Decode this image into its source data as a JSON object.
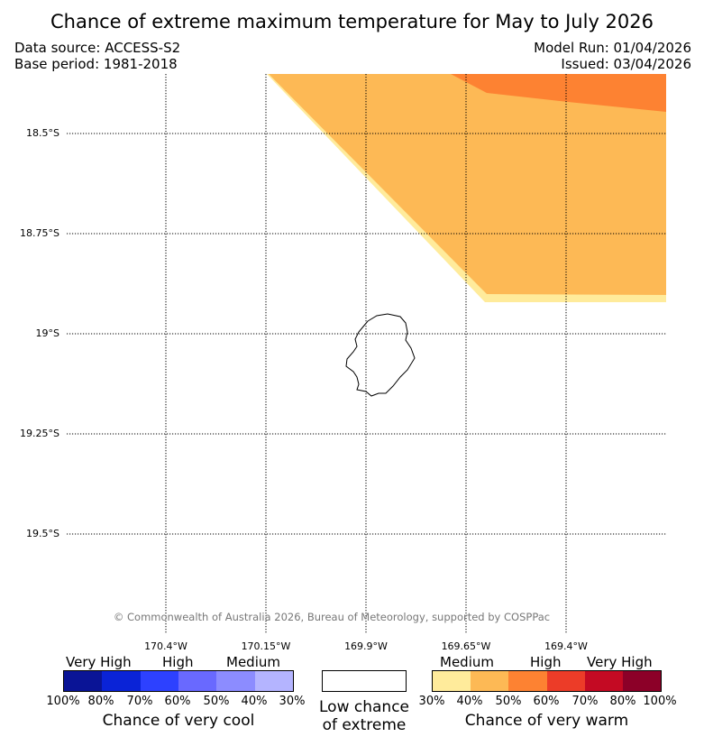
{
  "title": "Chance of extreme maximum temperature for May to July 2026",
  "data_source": "Data source: ACCESS-S2",
  "base_period": "Base period: 1981-2018",
  "model_run": "Model Run: 01/04/2026",
  "issued": "Issued: 03/04/2026",
  "lat_labels": [
    "18.5°S",
    "18.75°S",
    "19°S",
    "19.25°S",
    "19.5°S"
  ],
  "lon_labels": [
    "170.4°W",
    "170.15°W",
    "169.9°W",
    "169.65°W",
    "169.4°W"
  ],
  "copyright": "© Commonwealth of Australia 2026, Bureau of Meteorology, supported by COSPPac",
  "legend": {
    "cool": {
      "categories": [
        "Very High",
        "High",
        "Medium"
      ],
      "ticks": [
        "100%",
        "80%",
        "70%",
        "60%",
        "50%",
        "40%",
        "30%"
      ],
      "colors": [
        "#0a1496",
        "#0a23d7",
        "#2d41ff",
        "#6969ff",
        "#8c8cff",
        "#b4b4ff"
      ],
      "caption": "Chance of very cool"
    },
    "low": {
      "line1": "Low chance",
      "line2": "of extreme"
    },
    "warm": {
      "categories": [
        "Medium",
        "High",
        "Very High"
      ],
      "ticks": [
        "30%",
        "40%",
        "50%",
        "60%",
        "70%",
        "80%",
        "100%"
      ],
      "colors": [
        "#ffeb9b",
        "#fdb955",
        "#fd8232",
        "#ec3c28",
        "#c40a23",
        "#8c0028"
      ],
      "caption": "Chance of very warm"
    }
  },
  "map_colors": {
    "medium_light": "#ffeb9b",
    "medium": "#fdb955",
    "high": "#fd8232"
  }
}
